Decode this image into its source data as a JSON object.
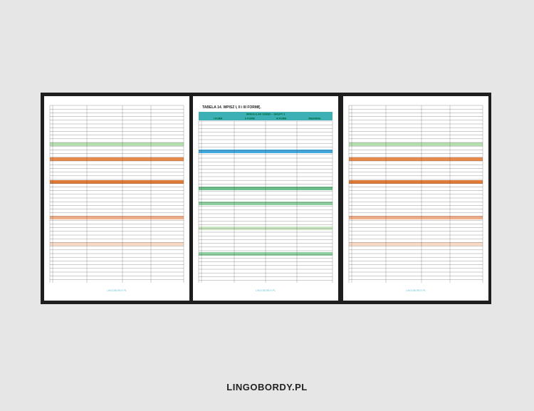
{
  "pages": [
    {
      "footer": "LINGOBORDY.PL"
    },
    {
      "title": "TABELA 14. WPISZ I, II i III FORMĘ.",
      "section": "IRREGULAR VERBS – GRUPY 3",
      "columns": [
        "I FORM",
        "II FORM",
        "III FORM",
        "MEANING"
      ],
      "footer": "LINGOBORDY.PL"
    },
    {
      "footer": "LINGOBORDY.PL"
    }
  ],
  "brand": "LINGOBORDY.PL"
}
